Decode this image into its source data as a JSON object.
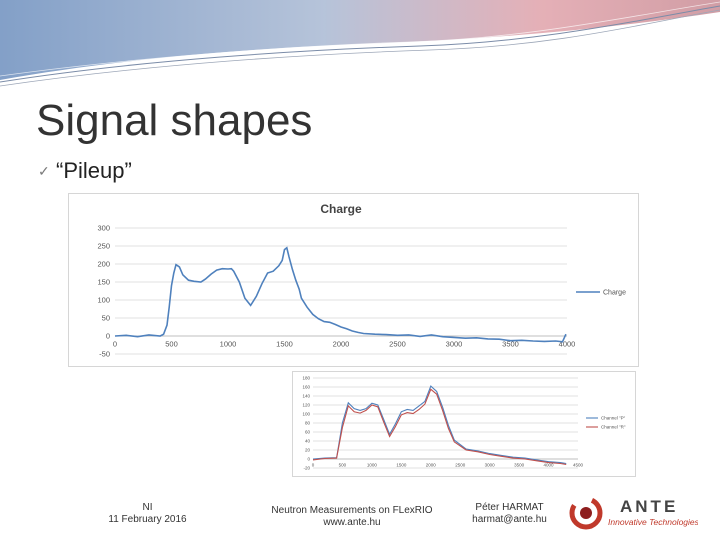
{
  "slide": {
    "title": "Signal shapes",
    "bullet": "“Pileup”"
  },
  "footer": {
    "left_line1": "NI",
    "left_line2": "11 February 2016",
    "center_line1": "Neutron Measurements on FLexRIO",
    "center_line2": "www.ante.hu",
    "right_line1": "Péter HARMAT",
    "right_line2": "harmat@ante.hu",
    "logo_text": "ANTE",
    "logo_subtext": "Innovative Technologies"
  },
  "colors": {
    "series_blue": "#4F81BD",
    "series_red": "#C0504D",
    "grid": "#D9D9D9",
    "banner_blue": "#5B7FB0",
    "banner_pink": "#D88A94"
  },
  "chart_data": [
    {
      "type": "line",
      "title": "Charge",
      "xlim": [
        0,
        4000
      ],
      "ylim": [
        -50,
        300
      ],
      "x_ticks": [
        0,
        500,
        1000,
        1500,
        2000,
        2500,
        3000,
        3500,
        4000
      ],
      "y_ticks": [
        -50,
        0,
        50,
        100,
        150,
        200,
        250,
        300
      ],
      "legend_position": "right",
      "grid": true,
      "series": [
        {
          "name": "Charge",
          "points": [
            [
              0,
              0
            ],
            [
              100,
              2
            ],
            [
              200,
              -2
            ],
            [
              300,
              3
            ],
            [
              400,
              0
            ],
            [
              430,
              5
            ],
            [
              460,
              30
            ],
            [
              480,
              80
            ],
            [
              500,
              140
            ],
            [
              520,
              175
            ],
            [
              540,
              198
            ],
            [
              570,
              192
            ],
            [
              600,
              170
            ],
            [
              650,
              155
            ],
            [
              700,
              152
            ],
            [
              760,
              150
            ],
            [
              800,
              158
            ],
            [
              850,
              172
            ],
            [
              900,
              183
            ],
            [
              950,
              187
            ],
            [
              1000,
              186
            ],
            [
              1030,
              187
            ],
            [
              1050,
              180
            ],
            [
              1100,
              150
            ],
            [
              1150,
              105
            ],
            [
              1200,
              85
            ],
            [
              1250,
              110
            ],
            [
              1300,
              145
            ],
            [
              1350,
              175
            ],
            [
              1400,
              180
            ],
            [
              1450,
              195
            ],
            [
              1480,
              210
            ],
            [
              1500,
              240
            ],
            [
              1520,
              245
            ],
            [
              1540,
              220
            ],
            [
              1570,
              185
            ],
            [
              1600,
              155
            ],
            [
              1630,
              130
            ],
            [
              1650,
              105
            ],
            [
              1700,
              80
            ],
            [
              1750,
              60
            ],
            [
              1800,
              48
            ],
            [
              1850,
              40
            ],
            [
              1900,
              38
            ],
            [
              1950,
              32
            ],
            [
              2000,
              25
            ],
            [
              2050,
              20
            ],
            [
              2100,
              14
            ],
            [
              2150,
              10
            ],
            [
              2200,
              7
            ],
            [
              2300,
              5
            ],
            [
              2400,
              4
            ],
            [
              2500,
              2
            ],
            [
              2600,
              3
            ],
            [
              2700,
              -1
            ],
            [
              2800,
              3
            ],
            [
              2900,
              -2
            ],
            [
              3000,
              -4
            ],
            [
              3100,
              -6
            ],
            [
              3200,
              -5
            ],
            [
              3300,
              -8
            ],
            [
              3400,
              -9
            ],
            [
              3500,
              -13
            ],
            [
              3600,
              -12
            ],
            [
              3700,
              -14
            ],
            [
              3800,
              -15
            ],
            [
              3900,
              -14
            ],
            [
              3960,
              -16
            ],
            [
              3990,
              5
            ]
          ]
        }
      ]
    },
    {
      "type": "line",
      "title": "",
      "xlim": [
        0,
        4500
      ],
      "ylim": [
        -20,
        180
      ],
      "x_ticks": [
        0,
        500,
        1000,
        1500,
        2000,
        2500,
        3000,
        3500,
        4000,
        4500
      ],
      "y_ticks": [
        -20,
        0,
        20,
        40,
        60,
        80,
        100,
        120,
        140,
        160,
        180
      ],
      "legend_position": "right",
      "grid": true,
      "series": [
        {
          "name": "Channel \"P\"",
          "points": [
            [
              0,
              0
            ],
            [
              200,
              2
            ],
            [
              400,
              3
            ],
            [
              500,
              80
            ],
            [
              600,
              125
            ],
            [
              700,
              112
            ],
            [
              800,
              108
            ],
            [
              900,
              112
            ],
            [
              1000,
              124
            ],
            [
              1100,
              120
            ],
            [
              1200,
              88
            ],
            [
              1300,
              55
            ],
            [
              1400,
              78
            ],
            [
              1500,
              105
            ],
            [
              1600,
              110
            ],
            [
              1700,
              108
            ],
            [
              1800,
              118
            ],
            [
              1900,
              128
            ],
            [
              2000,
              162
            ],
            [
              2100,
              150
            ],
            [
              2200,
              115
            ],
            [
              2300,
              75
            ],
            [
              2400,
              42
            ],
            [
              2600,
              22
            ],
            [
              2800,
              18
            ],
            [
              3000,
              12
            ],
            [
              3200,
              8
            ],
            [
              3400,
              4
            ],
            [
              3600,
              2
            ],
            [
              3800,
              -2
            ],
            [
              4000,
              -6
            ],
            [
              4200,
              -8
            ],
            [
              4300,
              -10
            ]
          ]
        },
        {
          "name": "Channel \"R\"",
          "points": [
            [
              0,
              -2
            ],
            [
              200,
              1
            ],
            [
              400,
              2
            ],
            [
              500,
              70
            ],
            [
              600,
              118
            ],
            [
              700,
              105
            ],
            [
              800,
              102
            ],
            [
              900,
              108
            ],
            [
              1000,
              120
            ],
            [
              1100,
              116
            ],
            [
              1200,
              82
            ],
            [
              1300,
              50
            ],
            [
              1400,
              72
            ],
            [
              1500,
              98
            ],
            [
              1600,
              103
            ],
            [
              1700,
              101
            ],
            [
              1800,
              110
            ],
            [
              1900,
              122
            ],
            [
              2000,
              155
            ],
            [
              2100,
              144
            ],
            [
              2200,
              108
            ],
            [
              2300,
              68
            ],
            [
              2400,
              38
            ],
            [
              2600,
              20
            ],
            [
              2800,
              16
            ],
            [
              3000,
              10
            ],
            [
              3200,
              6
            ],
            [
              3400,
              2
            ],
            [
              3600,
              0
            ],
            [
              3800,
              -4
            ],
            [
              4000,
              -8
            ],
            [
              4200,
              -10
            ],
            [
              4300,
              -12
            ]
          ]
        }
      ]
    }
  ]
}
